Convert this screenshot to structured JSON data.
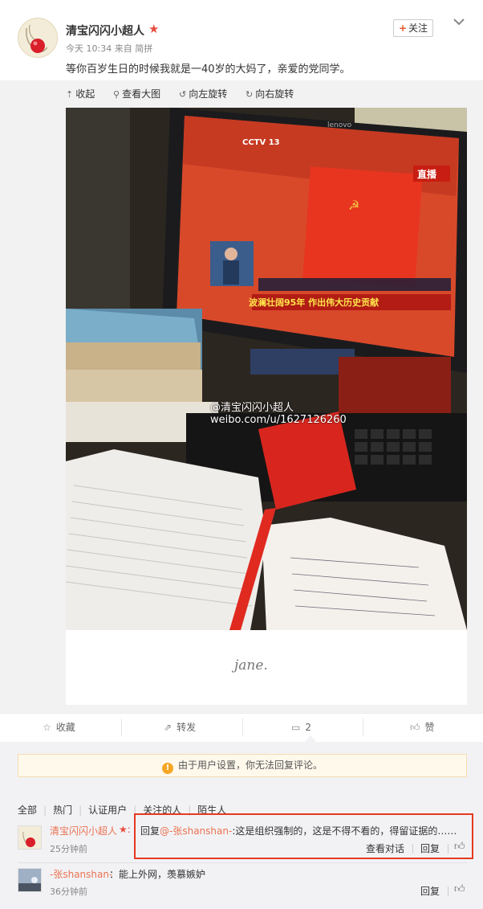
{
  "post": {
    "username": "清宝闪闪小超人",
    "time": "今天 10:34",
    "source": "来自 简拼",
    "text": "等你百岁生日的时候我就是一40岁的大妈了，亲爱的党同学。",
    "follow_label": "关注"
  },
  "media_toolbar": {
    "collapse": "收起",
    "view_large": "查看大图",
    "rotate_left": "向左旋转",
    "rotate_right": "向右旋转"
  },
  "photo": {
    "watermark_name": "@清宝闪闪小超人",
    "watermark_url": "weibo.com/u/1627126260",
    "signature": "jane."
  },
  "actions": {
    "favorite": "收藏",
    "repost": "转发",
    "comment_count": "2",
    "like": "赞"
  },
  "comments_panel": {
    "notice": "由于用户设置，你无法回复评论。",
    "filters": [
      "全部",
      "热门",
      "认证用户",
      "关注的人",
      "陌生人"
    ],
    "items": [
      {
        "name": "清宝闪闪小超人",
        "reply_prefix": "回复",
        "mention": "@-张shanshan-",
        "text": ":这是组织强制的，这是不得不看的，得留证据的……",
        "time": "25分钟前",
        "view_conversation": "查看对话",
        "reply": "回复"
      },
      {
        "name": "-张shanshan-",
        "text": "：能上外网，羡慕嫉妒",
        "time": "36分钟前",
        "reply": "回复"
      }
    ]
  },
  "colors": {
    "highlight_border": "#e53a1f",
    "name_orange": "#eb7350",
    "vip_red": "#e74c3c"
  }
}
